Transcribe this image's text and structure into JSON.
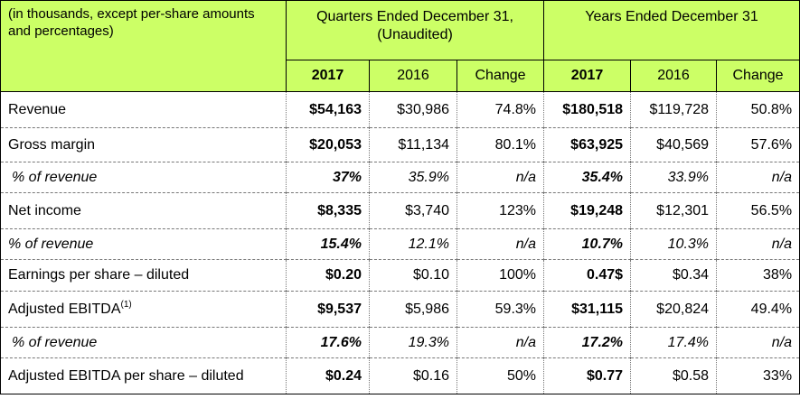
{
  "header": {
    "intro": "(in thousands, except per-share amounts and percentages)",
    "quarters_group": "Quarters Ended December 31, (Unaudited)",
    "years_group": "Years Ended December 31",
    "col_2017_q": "2017",
    "col_2016_q": "2016",
    "col_change_q": "Change",
    "col_2017_y": "2017",
    "col_2016_y": "2016",
    "col_change_y": "Change"
  },
  "rows": [
    {
      "label": "Revenue",
      "q2017": "$54,163",
      "q2016": "$30,986",
      "qchg": "74.8%",
      "y2017": "$180,518",
      "y2016": "$119,728",
      "ychg": "50.8%"
    },
    {
      "label": "Gross margin",
      "q2017": "$20,053",
      "q2016": "$11,134",
      "qchg": "80.1%",
      "y2017": "$63,925",
      "y2016": "$40,569",
      "ychg": "57.6%"
    },
    {
      "label": "% of revenue",
      "q2017": "37%",
      "q2016": "35.9%",
      "qchg": "n/a",
      "y2017": "35.4%",
      "y2016": "33.9%",
      "ychg": "n/a"
    },
    {
      "label": "Net income",
      "q2017": "$8,335",
      "q2016": "$3,740",
      "qchg": "123%",
      "y2017": "$19,248",
      "y2016": "$12,301",
      "ychg": "56.5%"
    },
    {
      "label": "% of revenue",
      "q2017": "15.4%",
      "q2016": "12.1%",
      "qchg": "n/a",
      "y2017": "10.7%",
      "y2016": "10.3%",
      "ychg": "n/a"
    },
    {
      "label": "Earnings per share – diluted",
      "q2017": "$0.20",
      "q2016": "$0.10",
      "qchg": "100%",
      "y2017": "0.47$",
      "y2016": "$0.34",
      "ychg": "38%"
    },
    {
      "label": "Adjusted EBITDA",
      "sup": "(1)",
      "q2017": "$9,537",
      "q2016": "$5,986",
      "qchg": "59.3%",
      "y2017": "$31,115",
      "y2016": "$20,824",
      "ychg": "49.4%"
    },
    {
      "label": "% of revenue",
      "q2017": "17.6%",
      "q2016": "19.3%",
      "qchg": "n/a",
      "y2017": "17.2%",
      "y2016": "17.4%",
      "ychg": "n/a"
    },
    {
      "label": "Adjusted EBITDA per share – diluted",
      "q2017": "$0.24",
      "q2016": "$0.16",
      "qchg": "50%",
      "y2017": "$0.77",
      "y2016": "$0.58",
      "ychg": "33%"
    }
  ],
  "colors": {
    "header_bg": "#ccff66",
    "border": "#000000"
  }
}
